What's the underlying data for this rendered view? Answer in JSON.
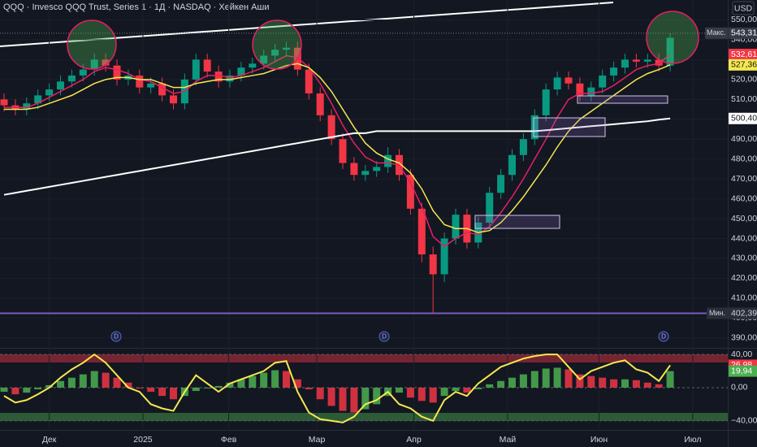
{
  "header": {
    "title": "QQQ · Invesco QQQ Trust, Series 1 · 1Д · NASDAQ · Хейкен Аши",
    "currency": "USD"
  },
  "chart_data": [
    {
      "type": "candlestick",
      "xlim": [
        -0.5,
        62.3
      ],
      "xticks": [
        {
          "value": 4,
          "label": "Дек"
        },
        {
          "value": 12.3,
          "label": "2025"
        },
        {
          "value": 19.9,
          "label": "Фев"
        },
        {
          "value": 27.7,
          "label": "Мар"
        },
        {
          "value": 36.3,
          "label": "Апр"
        },
        {
          "value": 44.6,
          "label": "Май"
        },
        {
          "value": 52.7,
          "label": "Июн"
        },
        {
          "value": 61,
          "label": "Июл"
        }
      ],
      "ylim": [
        385,
        560
      ],
      "yticks": [
        {
          "value": 390,
          "label": "390,00"
        },
        {
          "value": 400,
          "label": "400,00"
        },
        {
          "value": 410,
          "label": "410,00"
        },
        {
          "value": 420,
          "label": "420,00"
        },
        {
          "value": 430,
          "label": "430,00"
        },
        {
          "value": 440,
          "label": "440,00"
        },
        {
          "value": 450,
          "label": "450,00"
        },
        {
          "value": 460,
          "label": "460,00"
        },
        {
          "value": 470,
          "label": "470,00"
        },
        {
          "value": 480,
          "label": "480,00"
        },
        {
          "value": 490,
          "label": "490,00"
        },
        {
          "value": 500,
          "label": "500,00"
        },
        {
          "value": 510,
          "label": "510,00"
        },
        {
          "value": 520,
          "label": "520,00"
        },
        {
          "value": 530,
          "label": "530,00"
        },
        {
          "value": 540,
          "label": "540,00"
        },
        {
          "value": 550,
          "label": "550,00"
        }
      ],
      "grid": true,
      "up_color": "#089981",
      "down_color": "#f23645",
      "open": [
        510,
        507,
        505,
        508,
        512,
        515,
        519,
        522,
        525,
        530,
        527,
        520,
        522,
        516,
        518,
        512,
        508,
        520,
        530,
        524,
        519,
        522,
        526,
        528,
        532,
        535,
        536,
        525,
        513,
        502,
        490,
        478,
        472,
        474,
        476,
        482,
        472,
        455,
        432,
        422,
        440,
        452,
        438,
        448,
        463,
        472,
        482,
        490,
        502,
        515,
        521,
        518,
        512,
        516,
        522,
        526,
        530,
        529,
        530,
        527
      ],
      "high": [
        513,
        510,
        511,
        515,
        518,
        522,
        525,
        528,
        533,
        533,
        530,
        525,
        525,
        521,
        521,
        515,
        523,
        533,
        533,
        527,
        525,
        529,
        531,
        535,
        538,
        539,
        539,
        528,
        516,
        505,
        493,
        481,
        477,
        479,
        486,
        485,
        475,
        458,
        436,
        443,
        455,
        455,
        451,
        466,
        475,
        485,
        493,
        505,
        518,
        524,
        524,
        521,
        519,
        525,
        529,
        533,
        533,
        533,
        533,
        543.31
      ],
      "low": [
        504,
        502,
        502,
        505,
        509,
        512,
        516,
        519,
        522,
        524,
        517,
        517,
        513,
        513,
        509,
        505,
        505,
        517,
        521,
        516,
        516,
        519,
        523,
        525,
        529,
        532,
        522,
        510,
        499,
        487,
        475,
        469,
        469,
        471,
        473,
        469,
        452,
        428,
        402.39,
        418,
        437,
        435,
        435,
        445,
        460,
        469,
        479,
        487,
        499,
        512,
        515,
        509,
        509,
        513,
        519,
        523,
        526,
        526,
        524,
        524
      ],
      "close": [
        507,
        505,
        508,
        512,
        515,
        519,
        522,
        525,
        530,
        527,
        520,
        522,
        516,
        518,
        512,
        508,
        520,
        530,
        524,
        519,
        522,
        526,
        528,
        532,
        535,
        536,
        525,
        513,
        502,
        490,
        478,
        472,
        474,
        476,
        482,
        472,
        455,
        432,
        422,
        440,
        452,
        438,
        448,
        463,
        472,
        482,
        490,
        502,
        515,
        521,
        518,
        512,
        516,
        522,
        526,
        530,
        529,
        530,
        527,
        541
      ],
      "lines": [
        {
          "color": "#e91e63",
          "values": [
            506,
            506,
            506,
            508,
            511,
            514,
            517,
            520,
            524,
            526,
            525,
            523,
            520,
            519,
            516,
            513,
            514,
            519,
            522,
            522,
            521,
            522,
            524,
            526,
            529,
            532,
            531,
            526,
            518,
            508,
            497,
            488,
            481,
            478,
            478,
            477,
            468,
            456,
            441,
            436,
            440,
            443,
            442,
            446,
            453,
            461,
            470,
            480,
            490,
            501,
            510,
            513,
            513,
            514,
            517,
            521,
            525,
            527,
            528,
            532.61
          ],
          "last_label": "532,61"
        },
        {
          "color": "#f5e84f",
          "values": [
            505,
            505,
            505,
            506,
            508,
            510,
            512,
            515,
            518,
            520,
            521,
            521,
            520,
            520,
            518,
            516,
            516,
            518,
            519,
            520,
            520,
            521,
            522,
            523,
            525,
            527,
            528,
            526,
            521,
            514,
            505,
            496,
            488,
            483,
            480,
            478,
            473,
            465,
            454,
            447,
            445,
            445,
            443,
            444,
            448,
            454,
            461,
            469,
            477,
            486,
            494,
            500,
            504,
            508,
            512,
            516,
            520,
            523,
            525,
            527.36
          ],
          "last_label": "527,36"
        },
        {
          "color": "#ffffff",
          "values": [
            462,
            463,
            464,
            465,
            466,
            467,
            468,
            469,
            470,
            471,
            472,
            473,
            474,
            475,
            476,
            477,
            478,
            479,
            480,
            481,
            482,
            483,
            484,
            485,
            486,
            487,
            488,
            489,
            490,
            491,
            492,
            493,
            493,
            494,
            494,
            494,
            494,
            494,
            494,
            494,
            494,
            494,
            494,
            494,
            494,
            494,
            494,
            494,
            494.5,
            495,
            495.5,
            496,
            496.5,
            497,
            497.5,
            498,
            498.5,
            499,
            499.8,
            500.4
          ],
          "last_label": "500,40"
        }
      ],
      "max": {
        "label": "Макс.",
        "value": 543.31,
        "value_label": "543,31"
      },
      "min": {
        "label": "Мин.",
        "value": 402.39,
        "value_label": "402,39"
      },
      "event_markers": [
        "D",
        "D",
        "D"
      ]
    },
    {
      "type": "bar",
      "ylim": [
        -50,
        46
      ],
      "yticks": [
        {
          "value": 40,
          "label": "40,00"
        },
        {
          "value": 0,
          "label": "0,00"
        },
        {
          "value": -40,
          "label": "−40,00"
        }
      ],
      "up_color": "#4caf50",
      "down_color": "#f23645",
      "values": [
        -5,
        -8,
        -6,
        -2,
        3,
        8,
        12,
        16,
        20,
        18,
        12,
        6,
        0,
        -5,
        -10,
        -14,
        -10,
        -4,
        0,
        2,
        6,
        10,
        14,
        18,
        21,
        20,
        10,
        -2,
        -14,
        -22,
        -28,
        -30,
        -26,
        -20,
        -10,
        -6,
        -12,
        -16,
        -18,
        -10,
        -4,
        -6,
        -2,
        4,
        8,
        12,
        16,
        20,
        23,
        24,
        22,
        16,
        14,
        12,
        10,
        10,
        9,
        6,
        4,
        19.94
      ],
      "last_label": "19,94",
      "line": {
        "color": "#f5e84f",
        "values": [
          -10,
          -18,
          -15,
          -8,
          0,
          12,
          22,
          30,
          40,
          30,
          15,
          0,
          -5,
          -20,
          -25,
          -28,
          -5,
          15,
          5,
          -5,
          5,
          10,
          15,
          20,
          30,
          32,
          -5,
          -30,
          -38,
          -40,
          -42,
          -35,
          -20,
          -15,
          -5,
          -20,
          -25,
          -35,
          -40,
          -15,
          -5,
          -10,
          5,
          15,
          25,
          30,
          35,
          38,
          40,
          40,
          25,
          10,
          20,
          25,
          30,
          33,
          22,
          18,
          8,
          26.98
        ],
        "last_label": "26,98"
      }
    }
  ]
}
